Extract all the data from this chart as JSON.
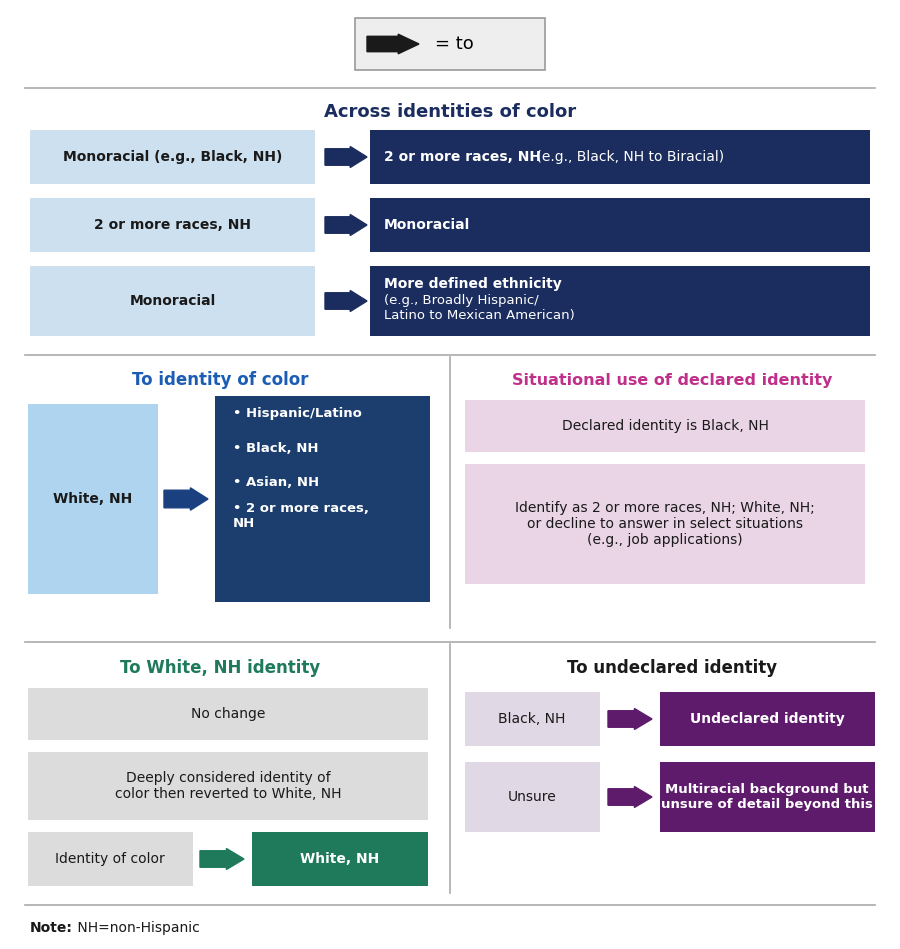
{
  "section1_title": "Across identities of color",
  "section1_rows": [
    {
      "left_text": "Monoracial (e.g., Black, NH)",
      "right_bold": "2 or more races, NH",
      "right_normal": " (e.g., Black, NH to Biracial)"
    },
    {
      "left_text": "2 or more races, NH",
      "right_bold": "Monoracial",
      "right_normal": ""
    },
    {
      "left_text": "Monoracial",
      "right_bold": "More defined ethnicity",
      "right_normal": " (e.g., Broadly Hispanic/\nLatino to Mexican American)"
    }
  ],
  "section2_left_title": "To identity of color",
  "section2_left_from": "White, NH",
  "section2_left_bullets": [
    "Hispanic/Latino",
    "Black, NH",
    "Asian, NH",
    "2 or more races,\nNH"
  ],
  "section2_right_title": "Situational use of declared identity",
  "section2_right_boxes": [
    "Declared identity is Black, NH",
    "Identify as 2 or more races, NH; White, NH;\nor decline to answer in select situations\n(e.g., job applications)"
  ],
  "section3_left_title": "To White, NH identity",
  "section3_left_boxes": [
    {
      "type": "single",
      "text": "No change"
    },
    {
      "type": "single",
      "text": "Deeply considered identity of\ncolor then reverted to White, NH"
    },
    {
      "type": "arrow",
      "from": "Identity of color",
      "to": "White, NH"
    }
  ],
  "section3_right_title": "To undeclared identity",
  "section3_right_rows": [
    {
      "from": "Black, NH",
      "to": "Undeclared identity"
    },
    {
      "from": "Unsure",
      "to": "Multiracial background but\nunsure of detail beyond this"
    }
  ],
  "note_bold": "Note:",
  "note_normal": " NH=non-Hispanic",
  "colors": {
    "light_blue_box": "#cce0f0",
    "dark_navy_box": "#1b2d5e",
    "bullet_blue_box": "#1b3e6e",
    "white_nh_box": "#aed4f0",
    "light_pink_box": "#ead5e6",
    "dark_purple_box": "#5e1a6b",
    "light_gray_box": "#dcdcdc",
    "teal_box": "#1e7a5a",
    "arrow_navy": "#1b2d5e",
    "arrow_teal": "#1e7a5a",
    "arrow_purple": "#5e1a6b",
    "arrow_blue_s2": "#1b4080",
    "section1_title_color": "#1b2d5e",
    "section2_left_title_color": "#1b5db5",
    "section2_right_title_color": "#c0308a",
    "section3_left_title_color": "#1e7a5a",
    "section3_right_title_color": "#1a1a1a",
    "separator_color": "#aaaaaa",
    "legend_bg": "#eeeeee",
    "legend_border": "#999999"
  }
}
